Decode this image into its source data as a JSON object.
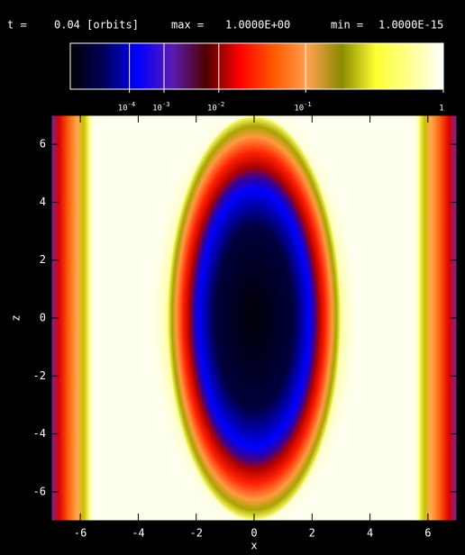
{
  "chart_data": {
    "type": "heatmap",
    "header": {
      "time_label": "t =",
      "time_value": "0.04 [orbits]",
      "max_label": "max =",
      "max_value": "1.0000E+00",
      "min_label": "min =",
      "min_value": "1.0000E-15"
    },
    "colorbar": {
      "power": 0.2,
      "colors": [
        "#000000",
        "#00005a",
        "#0000ff",
        "#5a1ab4",
        "#500000",
        "#ff0000",
        "#ff5a00",
        "#ffa050",
        "#8a8a00",
        "#ffff30",
        "#ffff90",
        "#ffffff"
      ],
      "ticks": [
        {
          "value": 0.0001,
          "label": "10",
          "exponent": "-4"
        },
        {
          "value": 0.001,
          "label": "10",
          "exponent": "-3"
        },
        {
          "value": 0.01,
          "label": "10",
          "exponent": "-2"
        },
        {
          "value": 0.1,
          "label": "10",
          "exponent": "-1"
        },
        1
      ]
    },
    "xlabel": "x",
    "ylabel": "z",
    "xlim": [
      -7,
      7
    ],
    "ylim": [
      -7,
      7
    ],
    "xticks": [
      -6,
      -4,
      -2,
      0,
      2,
      4,
      6
    ],
    "yticks": [
      -6,
      -4,
      -2,
      0,
      2,
      4,
      6
    ]
  }
}
